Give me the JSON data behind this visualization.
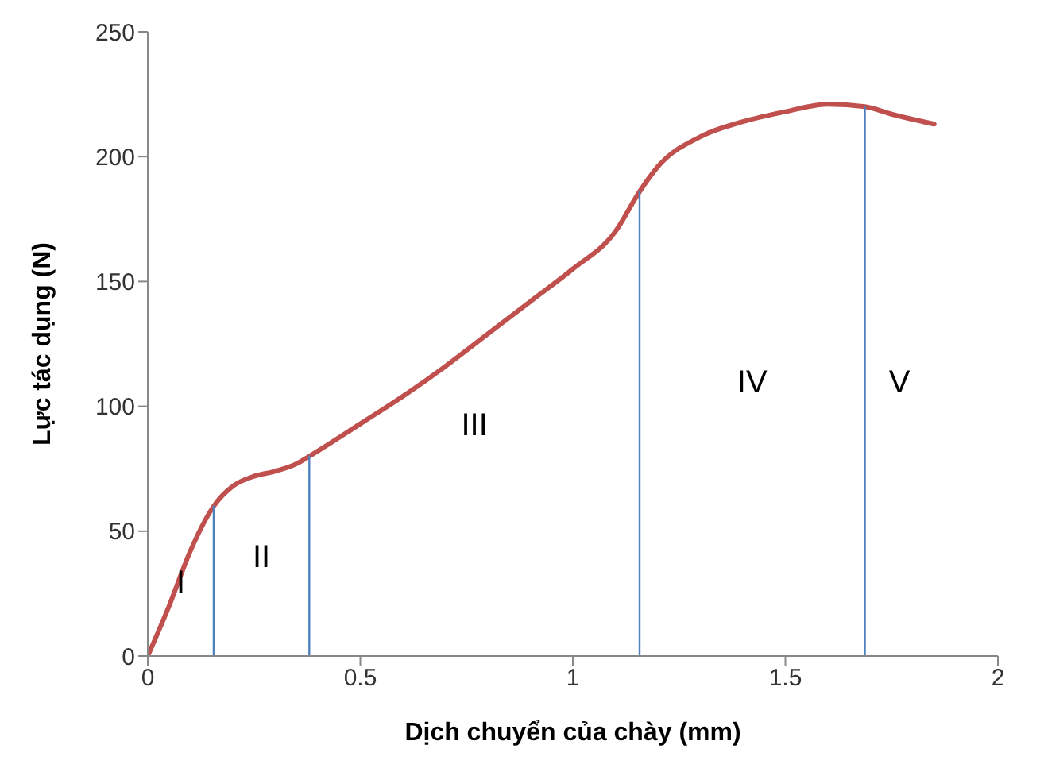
{
  "chart_data": {
    "type": "line",
    "xlabel": "Dịch chuyển của chày (mm)",
    "ylabel": "Lực tác dụng (N)",
    "xlim": [
      0,
      2
    ],
    "xticks": [
      0,
      0.5,
      1,
      1.5,
      2
    ],
    "ylim": [
      0,
      250
    ],
    "yticks": [
      0,
      50,
      100,
      150,
      200,
      250
    ],
    "grid": false,
    "marker": "none",
    "line_style": "solid",
    "series": [
      {
        "color": "#c0504d",
        "x": [
          0,
          0.05,
          0.1,
          0.155,
          0.2,
          0.25,
          0.3,
          0.35,
          0.38,
          0.5,
          0.6,
          0.7,
          0.8,
          0.9,
          1.0,
          1.1,
          1.157,
          1.2,
          1.3,
          1.4,
          1.5,
          1.6,
          1.687,
          1.75,
          1.85
        ],
        "values": [
          0,
          20,
          42,
          60,
          68,
          72,
          74,
          77,
          80,
          93,
          104,
          116,
          129,
          142,
          155,
          170,
          186,
          196,
          208,
          214,
          218,
          221,
          220,
          217,
          213
        ]
      },
      {
        "color": "#4f81bd",
        "x": [
          0.155,
          0.155
        ],
        "values": [
          0,
          60
        ]
      },
      {
        "color": "#4f81bd",
        "x": [
          0.38,
          0.38
        ],
        "values": [
          0,
          80
        ]
      },
      {
        "color": "#4f81bd",
        "x": [
          1.157,
          1.157
        ],
        "values": [
          0,
          186
        ]
      },
      {
        "color": "#4f81bd",
        "x": [
          1.687,
          1.687
        ],
        "values": [
          0,
          220
        ]
      }
    ],
    "annotations": [
      "I",
      "II",
      "III",
      "IV",
      "V"
    ]
  }
}
